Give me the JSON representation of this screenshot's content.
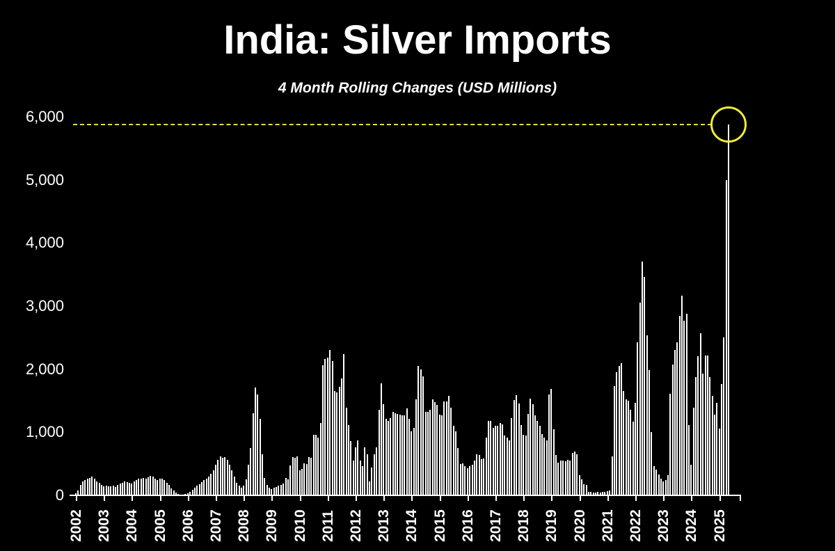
{
  "title": "India: Silver Imports",
  "subtitle": "4 Month Rolling Changes (USD Millions)",
  "colors": {
    "background": "#000000",
    "bar": "#ffffff",
    "text": "#ffffff",
    "dashed_line": "#e3df3f",
    "highlight_circle": "#f1ed37"
  },
  "chart_data": {
    "type": "bar",
    "title": "India: Silver Imports",
    "subtitle": "4 Month Rolling Changes (USD Millions)",
    "frequency": "monthly",
    "start_year": 2002,
    "x_tick_labels": [
      "2002",
      "2003",
      "2004",
      "2005",
      "2006",
      "2007",
      "2008",
      "2009",
      "2010",
      "2011",
      "2012",
      "2013",
      "2014",
      "2015",
      "2016",
      "2017",
      "2018",
      "2019",
      "2020",
      "2021",
      "2022",
      "2023",
      "2024",
      "2025"
    ],
    "y_ticks": [
      0,
      1000,
      2000,
      3000,
      4000,
      5000,
      6000
    ],
    "y_tick_labels": [
      "0",
      "1,000",
      "2,000",
      "3,000",
      "4,000",
      "5,000",
      "6,000"
    ],
    "ylim": [
      0,
      6000
    ],
    "grid": false,
    "legend": false,
    "values": [
      35,
      75,
      165,
      220,
      240,
      260,
      275,
      295,
      265,
      220,
      200,
      165,
      145,
      155,
      140,
      145,
      155,
      130,
      165,
      185,
      200,
      220,
      215,
      200,
      190,
      220,
      240,
      260,
      265,
      275,
      260,
      290,
      310,
      295,
      265,
      240,
      260,
      265,
      240,
      200,
      165,
      110,
      75,
      45,
      25,
      15,
      10,
      20,
      35,
      60,
      90,
      120,
      150,
      180,
      210,
      240,
      270,
      300,
      340,
      400,
      480,
      560,
      620,
      600,
      610,
      560,
      480,
      400,
      300,
      200,
      150,
      120,
      150,
      250,
      480,
      745,
      1300,
      1710,
      1600,
      1210,
      655,
      280,
      160,
      120,
      100,
      120,
      130,
      150,
      170,
      190,
      280,
      255,
      475,
      610,
      600,
      620,
      400,
      420,
      510,
      500,
      610,
      600,
      955,
      965,
      920,
      1145,
      2065,
      2165,
      2185,
      2300,
      2130,
      1655,
      1630,
      1720,
      1850,
      2240,
      1390,
      1110,
      855,
      555,
      765,
      875,
      555,
      465,
      765,
      655,
      220,
      445,
      655,
      765,
      1355,
      1775,
      1445,
      1210,
      1175,
      1220,
      1320,
      1300,
      1290,
      1280,
      1270,
      1265,
      1375,
      1210,
      1020,
      1075,
      1520,
      2055,
      2000,
      1890,
      1320,
      1320,
      1355,
      1520,
      1480,
      1430,
      1280,
      1265,
      1490,
      1490,
      1575,
      1390,
      1100,
      1020,
      745,
      500,
      510,
      465,
      430,
      460,
      480,
      555,
      655,
      645,
      575,
      590,
      920,
      1175,
      1185,
      1075,
      1100,
      1100,
      1145,
      1120,
      945,
      920,
      875,
      1220,
      1510,
      1585,
      1455,
      1110,
      955,
      945,
      1290,
      1530,
      1440,
      1265,
      1180,
      1100,
      975,
      920,
      875,
      1600,
      1690,
      1045,
      635,
      520,
      555,
      555,
      545,
      560,
      550,
      675,
      690,
      655,
      320,
      250,
      180,
      165,
      60,
      50,
      40,
      40,
      50,
      40,
      50,
      60,
      70,
      80,
      620,
      1730,
      1955,
      2055,
      2100,
      1655,
      1520,
      1500,
      1355,
      1165,
      1465,
      2430,
      3050,
      3710,
      3465,
      2540,
      1985,
      1000,
      465,
      410,
      335,
      265,
      220,
      245,
      320,
      1610,
      2075,
      2300,
      2430,
      2850,
      3165,
      2765,
      2875,
      1110,
      490,
      1390,
      1875,
      2210,
      2575,
      1930,
      2220,
      2220,
      1875,
      1575,
      1275,
      1465,
      1055,
      1765,
      2500,
      5000,
      5880
    ],
    "annotation": {
      "dashed_line_value": 5880,
      "circled_point_index": 280,
      "circled_point_value": 5880,
      "circle_color": "#f1ed37",
      "dash_color": "#e3df3f"
    }
  }
}
